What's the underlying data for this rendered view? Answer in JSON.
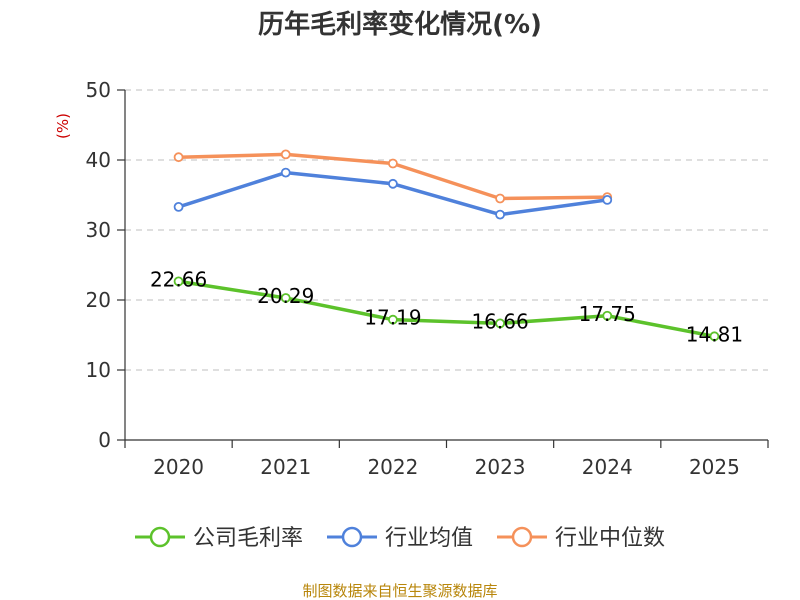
{
  "chart_data": {
    "type": "line",
    "title": "历年毛利率变化情况(%)",
    "ylabel": "(%)",
    "xlabel": "",
    "categories": [
      "2020",
      "2021",
      "2022",
      "2023",
      "2024",
      "2025"
    ],
    "ylim": [
      0,
      50
    ],
    "yticks": [
      0,
      10,
      20,
      30,
      40,
      50
    ],
    "grid": true,
    "legend_position": "bottom",
    "series": [
      {
        "name": "公司毛利率",
        "color": "#5cc22b",
        "values": [
          22.66,
          20.29,
          17.19,
          16.66,
          17.75,
          14.81
        ],
        "labels": [
          "22.66",
          "20.29",
          "17.19",
          "16.66",
          "17.75",
          "14.81"
        ]
      },
      {
        "name": "行业均值",
        "color": "#4f81db",
        "values": [
          33.3,
          38.2,
          36.6,
          32.2,
          34.3,
          null
        ]
      },
      {
        "name": "行业中位数",
        "color": "#f5915a",
        "values": [
          40.4,
          40.8,
          39.5,
          34.5,
          34.7,
          null
        ]
      }
    ]
  },
  "source": "制图数据来自恒生聚源数据库"
}
